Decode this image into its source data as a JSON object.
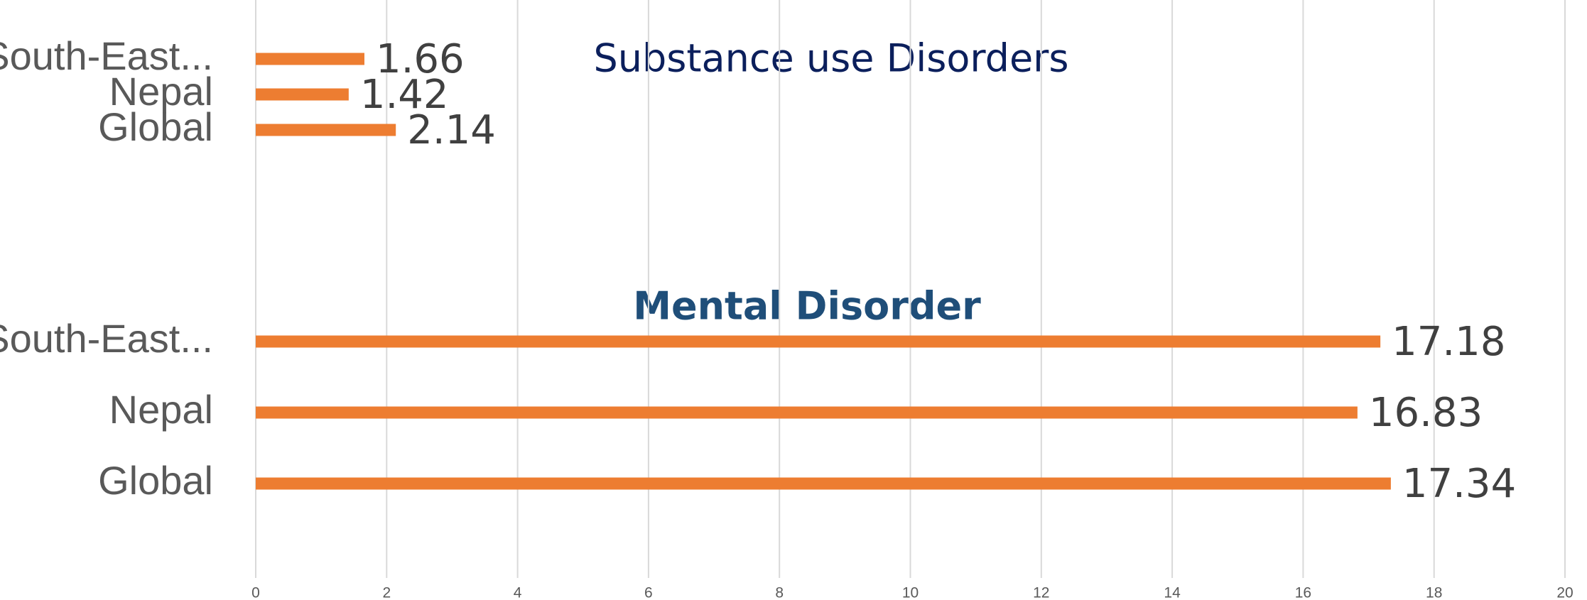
{
  "chart_data": [
    {
      "type": "barh",
      "title": "Substance use Disorders",
      "categories": [
        "South-East...",
        "Nepal",
        "Global"
      ],
      "values": [
        1.66,
        1.42,
        2.14
      ],
      "color": "#ed7d31",
      "xlim": [
        0,
        20
      ],
      "xticks": [
        0,
        2,
        4,
        6,
        8,
        10,
        12,
        14,
        16,
        18,
        20
      ],
      "grid": true
    },
    {
      "type": "barh",
      "title": "Mental Disorder",
      "categories": [
        "South-East...",
        "Nepal",
        "Global"
      ],
      "values": [
        17.18,
        16.83,
        17.34
      ],
      "color": "#ed7d31",
      "xlim": [
        0,
        20
      ],
      "xticks": [
        0,
        2,
        4,
        6,
        8,
        10,
        12,
        14,
        16,
        18,
        20
      ],
      "grid": true
    }
  ]
}
